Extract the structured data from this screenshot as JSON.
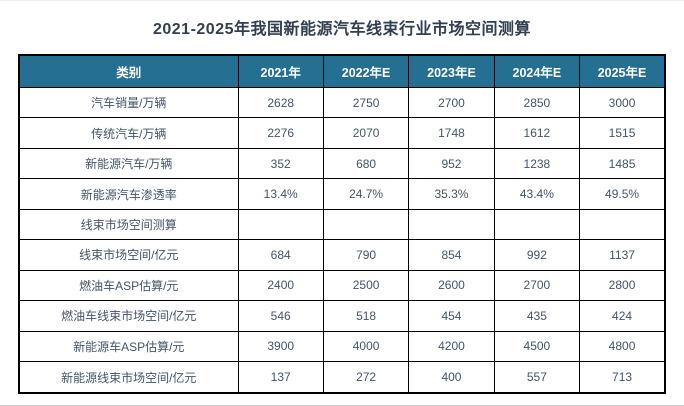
{
  "title": "2021-2025年我国新能源汽车线束行业市场空间测算",
  "colors": {
    "header_bg": "#256F92",
    "header_text": "#FFFFFF",
    "body_text": "#44546A",
    "title_text": "#333F50",
    "border": "#000000",
    "page_bg": "#FFFFFF"
  },
  "chart_data": {
    "type": "table",
    "title": "2021-2025年我国新能源汽车线束行业市场空间测算",
    "columns": [
      "类别",
      "2021年",
      "2022年E",
      "2023年E",
      "2024年E",
      "2025年E"
    ],
    "rows": [
      {
        "label": "汽车销量/万辆",
        "values": [
          "2628",
          "2750",
          "2700",
          "2850",
          "3000"
        ]
      },
      {
        "label": "传统汽车/万辆",
        "values": [
          "2276",
          "2070",
          "1748",
          "1612",
          "1515"
        ]
      },
      {
        "label": "新能源汽车/万辆",
        "values": [
          "352",
          "680",
          "952",
          "1238",
          "1485"
        ]
      },
      {
        "label": "新能源汽车渗透率",
        "values": [
          "13.4%",
          "24.7%",
          "35.3%",
          "43.4%",
          "49.5%"
        ]
      },
      {
        "label": "线束市场空间测算",
        "values": [
          "",
          "",
          "",
          "",
          ""
        ]
      },
      {
        "label": "线束市场空间/亿元",
        "values": [
          "684",
          "790",
          "854",
          "992",
          "1137"
        ]
      },
      {
        "label": "燃油车ASP估算/元",
        "values": [
          "2400",
          "2500",
          "2600",
          "2700",
          "2800"
        ]
      },
      {
        "label": "燃油车线束市场空间/亿元",
        "values": [
          "546",
          "518",
          "454",
          "435",
          "424"
        ]
      },
      {
        "label": "新能源车ASP估算/元",
        "values": [
          "3900",
          "4000",
          "4200",
          "4500",
          "4800"
        ]
      },
      {
        "label": "新能源线束市场空间/亿元",
        "values": [
          "137",
          "272",
          "400",
          "557",
          "713"
        ]
      }
    ]
  }
}
